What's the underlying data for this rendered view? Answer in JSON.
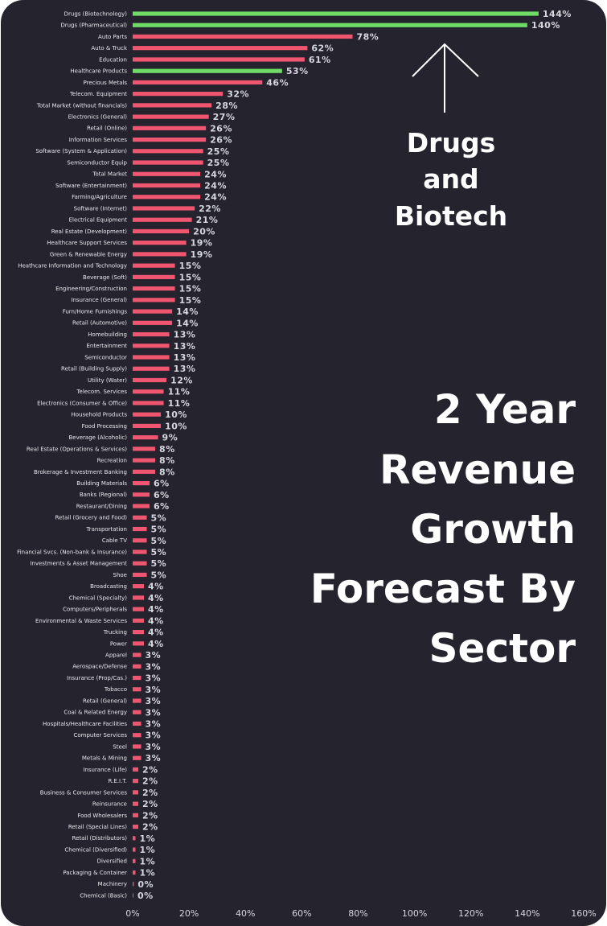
{
  "chart_data": {
    "type": "bar",
    "orientation": "horizontal",
    "title": [
      "2 Year",
      "Revenue",
      "Growth",
      "Forecast By",
      "Sector"
    ],
    "annotation": [
      "Drugs",
      "and",
      "Biotech"
    ],
    "xlim": [
      0,
      160
    ],
    "x_ticks": [
      "0%",
      "20%",
      "40%",
      "60%",
      "80%",
      "100%",
      "120%",
      "140%",
      "160%"
    ],
    "grid": false,
    "colors": {
      "highlight": "#6fdc66",
      "default": "#f0566f",
      "background": "#24232e"
    },
    "bars": [
      {
        "label": "Drugs (Biotechnology)",
        "value": 144,
        "text": "144%",
        "highlight": true
      },
      {
        "label": "Drugs (Pharmaceutical)",
        "value": 140,
        "text": "140%",
        "highlight": true
      },
      {
        "label": "Auto Parts",
        "value": 78,
        "text": "78%"
      },
      {
        "label": "Auto & Truck",
        "value": 62,
        "text": "62%"
      },
      {
        "label": "Education",
        "value": 61,
        "text": "61%"
      },
      {
        "label": "Healthcare Products",
        "value": 53,
        "text": "53%",
        "highlight": true
      },
      {
        "label": "Precious Metals",
        "value": 46,
        "text": "46%"
      },
      {
        "label": "Telecom. Equipment",
        "value": 32,
        "text": "32%"
      },
      {
        "label": "Total Market (without financials)",
        "value": 28,
        "text": "28%"
      },
      {
        "label": "Electronics (General)",
        "value": 27,
        "text": "27%"
      },
      {
        "label": "Retail (Online)",
        "value": 26,
        "text": "26%"
      },
      {
        "label": "Information Services",
        "value": 26,
        "text": "26%"
      },
      {
        "label": "Software (System & Application)",
        "value": 25,
        "text": "25%"
      },
      {
        "label": "Semiconductor Equip",
        "value": 25,
        "text": "25%"
      },
      {
        "label": "Total Market",
        "value": 24,
        "text": "24%"
      },
      {
        "label": "Software (Entertainment)",
        "value": 24,
        "text": "24%"
      },
      {
        "label": "Farming/Agriculture",
        "value": 24,
        "text": "24%"
      },
      {
        "label": "Software (Internet)",
        "value": 22,
        "text": "22%"
      },
      {
        "label": "Electrical Equipment",
        "value": 21,
        "text": "21%"
      },
      {
        "label": "Real Estate (Development)",
        "value": 20,
        "text": "20%"
      },
      {
        "label": "Healthcare Support Services",
        "value": 19,
        "text": "19%"
      },
      {
        "label": "Green & Renewable Energy",
        "value": 19,
        "text": "19%"
      },
      {
        "label": "Heathcare Information and Technology",
        "value": 15,
        "text": "15%"
      },
      {
        "label": "Beverage (Soft)",
        "value": 15,
        "text": "15%"
      },
      {
        "label": "Engineering/Construction",
        "value": 15,
        "text": "15%"
      },
      {
        "label": "Insurance (General)",
        "value": 15,
        "text": "15%"
      },
      {
        "label": "Furn/Home Furnishings",
        "value": 14,
        "text": "14%"
      },
      {
        "label": "Retail (Automotive)",
        "value": 14,
        "text": "14%"
      },
      {
        "label": "Homebuilding",
        "value": 13,
        "text": "13%"
      },
      {
        "label": "Entertainment",
        "value": 13,
        "text": "13%"
      },
      {
        "label": "Semiconductor",
        "value": 13,
        "text": "13%"
      },
      {
        "label": "Retail (Building Supply)",
        "value": 13,
        "text": "13%"
      },
      {
        "label": "Utility (Water)",
        "value": 12,
        "text": "12%"
      },
      {
        "label": "Telecom. Services",
        "value": 11,
        "text": "11%"
      },
      {
        "label": "Electronics (Consumer & Office)",
        "value": 11,
        "text": "11%"
      },
      {
        "label": "Household Products",
        "value": 10,
        "text": "10%"
      },
      {
        "label": "Food Processing",
        "value": 10,
        "text": "10%"
      },
      {
        "label": "Beverage (Alcoholic)",
        "value": 9,
        "text": "9%"
      },
      {
        "label": "Real Estate (Operations & Services)",
        "value": 8,
        "text": "8%"
      },
      {
        "label": "Recreation",
        "value": 8,
        "text": "8%"
      },
      {
        "label": "Brokerage & Investment Banking",
        "value": 8,
        "text": "8%"
      },
      {
        "label": "Building Materials",
        "value": 6,
        "text": "6%"
      },
      {
        "label": "Banks (Regional)",
        "value": 6,
        "text": "6%"
      },
      {
        "label": "Restaurant/Dining",
        "value": 6,
        "text": "6%"
      },
      {
        "label": "Retail (Grocery and Food)",
        "value": 5,
        "text": "5%"
      },
      {
        "label": "Transportation",
        "value": 5,
        "text": "5%"
      },
      {
        "label": "Cable TV",
        "value": 5,
        "text": "5%"
      },
      {
        "label": "Financial Svcs. (Non-bank & Insurance)",
        "value": 5,
        "text": "5%"
      },
      {
        "label": "Investments & Asset Management",
        "value": 5,
        "text": "5%"
      },
      {
        "label": "Shoe",
        "value": 5,
        "text": "5%"
      },
      {
        "label": "Broadcasting",
        "value": 4,
        "text": "4%"
      },
      {
        "label": "Chemical (Specialty)",
        "value": 4,
        "text": "4%"
      },
      {
        "label": "Computers/Peripherals",
        "value": 4,
        "text": "4%"
      },
      {
        "label": "Environmental & Waste Services",
        "value": 4,
        "text": "4%"
      },
      {
        "label": "Trucking",
        "value": 4,
        "text": "4%"
      },
      {
        "label": "Power",
        "value": 4,
        "text": "4%"
      },
      {
        "label": "Apparel",
        "value": 3,
        "text": "3%"
      },
      {
        "label": "Aerospace/Defense",
        "value": 3,
        "text": "3%"
      },
      {
        "label": "Insurance (Prop/Cas.)",
        "value": 3,
        "text": "3%"
      },
      {
        "label": "Tobacco",
        "value": 3,
        "text": "3%"
      },
      {
        "label": "Retail (General)",
        "value": 3,
        "text": "3%"
      },
      {
        "label": "Coal & Related Energy",
        "value": 3,
        "text": "3%"
      },
      {
        "label": "Hospitals/Healthcare Facilities",
        "value": 3,
        "text": "3%"
      },
      {
        "label": "Computer Services",
        "value": 3,
        "text": "3%"
      },
      {
        "label": "Steel",
        "value": 3,
        "text": "3%"
      },
      {
        "label": "Metals & Mining",
        "value": 3,
        "text": "3%"
      },
      {
        "label": "Insurance (Life)",
        "value": 2,
        "text": "2%"
      },
      {
        "label": "R.E.I.T.",
        "value": 2,
        "text": "2%"
      },
      {
        "label": "Business & Consumer Services",
        "value": 2,
        "text": "2%"
      },
      {
        "label": "Reinsurance",
        "value": 2,
        "text": "2%"
      },
      {
        "label": "Food Wholesalers",
        "value": 2,
        "text": "2%"
      },
      {
        "label": "Retail (Special Lines)",
        "value": 2,
        "text": "2%"
      },
      {
        "label": "Retail (Distributors)",
        "value": 1,
        "text": "1%"
      },
      {
        "label": "Chemical (Diversified)",
        "value": 1,
        "text": "1%"
      },
      {
        "label": "Diversified",
        "value": 1,
        "text": "1%"
      },
      {
        "label": "Packaging & Container",
        "value": 1,
        "text": "1%"
      },
      {
        "label": "Machinery",
        "value": 0.4,
        "text": "0%"
      },
      {
        "label": "Chemical (Basic)",
        "value": 0.2,
        "text": "0%"
      }
    ]
  }
}
